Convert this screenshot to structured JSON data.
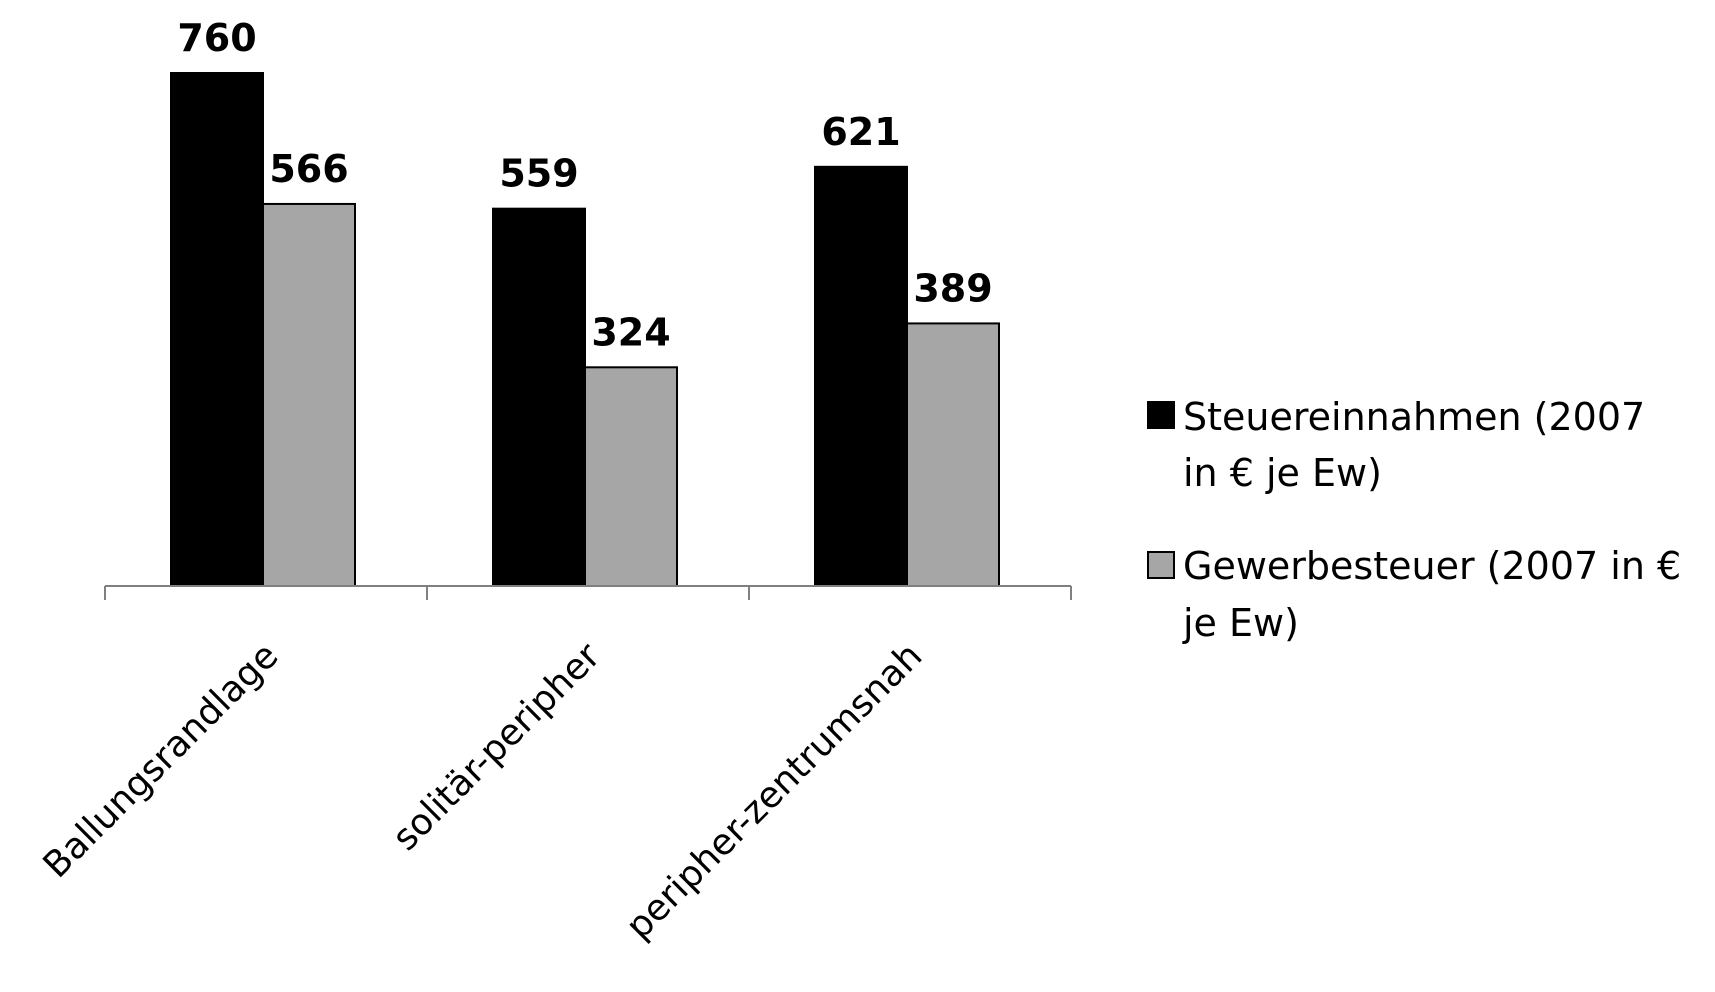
{
  "chart_data": {
    "type": "bar",
    "categories": [
      "Ballungsrandlage",
      "solitär-peripher",
      "peripher-zentrumsnah"
    ],
    "series": [
      {
        "name": "Steuereinnahmen (2007 in € je Ew)",
        "legend_lines": [
          "Steuereinnahmen (2007",
          "in € je Ew)"
        ],
        "values": [
          760,
          559,
          621
        ],
        "labels": [
          "760",
          "559",
          "621"
        ],
        "color": "#000000"
      },
      {
        "name": "Gewerbesteuer (2007 in € je Ew)",
        "legend_lines": [
          "Gewerbesteuer (2007 in €",
          "je Ew)"
        ],
        "values": [
          566,
          324,
          389
        ],
        "labels": [
          "566",
          "324",
          "389"
        ],
        "color": "#a6a6a6"
      }
    ],
    "title": "",
    "xlabel": "",
    "ylabel": "",
    "ylim": [
      0,
      800
    ],
    "grid": false,
    "legend": "right",
    "data_labels": true,
    "axis_color": "#808080"
  }
}
